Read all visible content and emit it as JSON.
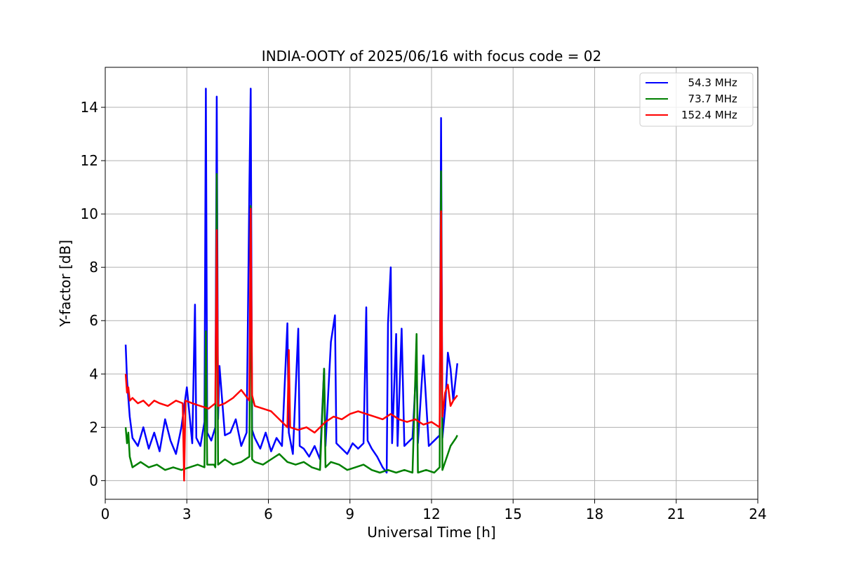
{
  "chart_data": {
    "type": "line",
    "title": "INDIA-OOTY of 2025/06/16 with focus code = 02",
    "xlabel": "Universal Time [h]",
    "ylabel": "Y-factor [dB]",
    "xlim": [
      0,
      24
    ],
    "ylim": [
      -0.7,
      15.5
    ],
    "xticks": [
      0,
      3,
      6,
      9,
      12,
      15,
      18,
      21,
      24
    ],
    "yticks": [
      0,
      2,
      4,
      6,
      8,
      10,
      12,
      14
    ],
    "grid": true,
    "legend_position": "top-right",
    "series": [
      {
        "name": "  54.3 MHz",
        "color": "#0000ff",
        "x": [
          0.75,
          0.8,
          0.85,
          0.9,
          1.0,
          1.2,
          1.4,
          1.6,
          1.8,
          2.0,
          2.2,
          2.4,
          2.6,
          2.8,
          3.0,
          3.2,
          3.3,
          3.35,
          3.5,
          3.65,
          3.7,
          3.75,
          3.9,
          4.05,
          4.1,
          4.15,
          4.2,
          4.4,
          4.6,
          4.8,
          5.0,
          5.2,
          5.3,
          5.35,
          5.4,
          5.5,
          5.7,
          5.9,
          6.1,
          6.3,
          6.5,
          6.7,
          6.75,
          6.9,
          7.1,
          7.15,
          7.3,
          7.5,
          7.7,
          7.9,
          8.05,
          8.1,
          8.3,
          8.45,
          8.5,
          8.7,
          8.9,
          9.1,
          9.3,
          9.5,
          9.6,
          9.65,
          9.8,
          10.0,
          10.2,
          10.35,
          10.4,
          10.5,
          10.55,
          10.7,
          10.75,
          10.9,
          11.0,
          11.1,
          11.3,
          11.45,
          11.5,
          11.7,
          11.9,
          12.1,
          12.3,
          12.35,
          12.4,
          12.5,
          12.6,
          12.7,
          12.8,
          12.95
        ],
        "y": [
          5.1,
          3.8,
          3.1,
          2.4,
          1.6,
          1.3,
          2.0,
          1.2,
          1.8,
          1.1,
          2.3,
          1.5,
          1.0,
          2.0,
          3.5,
          1.4,
          6.6,
          1.6,
          1.3,
          2.2,
          14.7,
          1.8,
          1.5,
          2.0,
          14.4,
          2.3,
          4.3,
          1.7,
          1.8,
          2.3,
          1.3,
          1.8,
          11.0,
          14.7,
          1.9,
          1.6,
          1.2,
          1.8,
          1.1,
          1.6,
          1.3,
          5.9,
          1.8,
          1.0,
          5.7,
          1.3,
          1.2,
          0.9,
          1.3,
          0.8,
          4.2,
          1.3,
          5.2,
          6.2,
          1.4,
          1.2,
          1.0,
          1.4,
          1.2,
          1.4,
          6.5,
          1.5,
          1.2,
          0.9,
          0.5,
          0.3,
          5.9,
          8.0,
          1.4,
          5.5,
          1.3,
          5.7,
          1.3,
          1.4,
          1.6,
          4.5,
          1.4,
          4.7,
          1.3,
          1.5,
          1.7,
          13.6,
          1.6,
          2.7,
          4.8,
          4.2,
          3.0,
          4.4
        ]
      },
      {
        "name": "  73.7 MHz",
        "color": "#008000",
        "x": [
          0.75,
          0.8,
          0.85,
          0.9,
          1.0,
          1.3,
          1.6,
          1.9,
          2.2,
          2.5,
          2.8,
          3.1,
          3.4,
          3.65,
          3.7,
          3.75,
          4.0,
          4.05,
          4.1,
          4.15,
          4.4,
          4.7,
          5.0,
          5.3,
          5.35,
          5.4,
          5.5,
          5.8,
          6.1,
          6.4,
          6.7,
          7.0,
          7.3,
          7.6,
          7.9,
          8.05,
          8.1,
          8.3,
          8.6,
          8.9,
          9.2,
          9.5,
          9.8,
          10.1,
          10.4,
          10.7,
          11.0,
          11.3,
          11.45,
          11.5,
          11.8,
          12.1,
          12.3,
          12.35,
          12.4,
          12.6,
          12.7,
          12.9,
          12.95
        ],
        "y": [
          2.0,
          1.4,
          1.8,
          0.9,
          0.5,
          0.7,
          0.5,
          0.6,
          0.4,
          0.5,
          0.4,
          0.5,
          0.6,
          0.5,
          5.6,
          0.6,
          0.6,
          0.5,
          11.5,
          0.6,
          0.8,
          0.6,
          0.7,
          0.9,
          10.3,
          0.8,
          0.7,
          0.6,
          0.8,
          1.0,
          0.7,
          0.6,
          0.7,
          0.5,
          0.4,
          4.2,
          0.5,
          0.7,
          0.6,
          0.4,
          0.5,
          0.6,
          0.4,
          0.3,
          0.4,
          0.3,
          0.4,
          0.3,
          5.5,
          0.3,
          0.4,
          0.3,
          0.5,
          11.6,
          0.4,
          1.0,
          1.3,
          1.6,
          1.7
        ]
      },
      {
        "name": "152.4 MHz",
        "color": "#ff0000",
        "x": [
          0.75,
          0.8,
          0.85,
          0.9,
          1.0,
          1.2,
          1.4,
          1.6,
          1.8,
          2.0,
          2.3,
          2.6,
          2.85,
          2.9,
          2.95,
          3.2,
          3.5,
          3.8,
          4.05,
          4.1,
          4.15,
          4.4,
          4.7,
          5.0,
          5.3,
          5.35,
          5.4,
          5.5,
          5.8,
          6.1,
          6.4,
          6.7,
          6.75,
          6.8,
          7.1,
          7.4,
          7.7,
          8.0,
          8.1,
          8.4,
          8.7,
          9.0,
          9.3,
          9.6,
          9.9,
          10.2,
          10.5,
          10.8,
          11.1,
          11.4,
          11.7,
          12.0,
          12.3,
          12.35,
          12.4,
          12.5,
          12.6,
          12.7,
          12.8,
          12.95
        ],
        "y": [
          4.0,
          3.3,
          3.5,
          3.0,
          3.1,
          2.9,
          3.0,
          2.8,
          3.0,
          2.9,
          2.8,
          3.0,
          2.9,
          0.0,
          3.0,
          2.9,
          2.8,
          2.7,
          2.9,
          9.4,
          2.8,
          2.9,
          3.1,
          3.4,
          3.0,
          10.2,
          3.2,
          2.8,
          2.7,
          2.6,
          2.3,
          2.0,
          4.9,
          2.0,
          1.9,
          2.0,
          1.8,
          2.1,
          2.2,
          2.4,
          2.3,
          2.5,
          2.6,
          2.5,
          2.4,
          2.3,
          2.5,
          2.3,
          2.2,
          2.3,
          2.1,
          2.2,
          2.0,
          10.1,
          2.4,
          3.3,
          3.6,
          2.8,
          3.0,
          3.2
        ]
      }
    ]
  }
}
